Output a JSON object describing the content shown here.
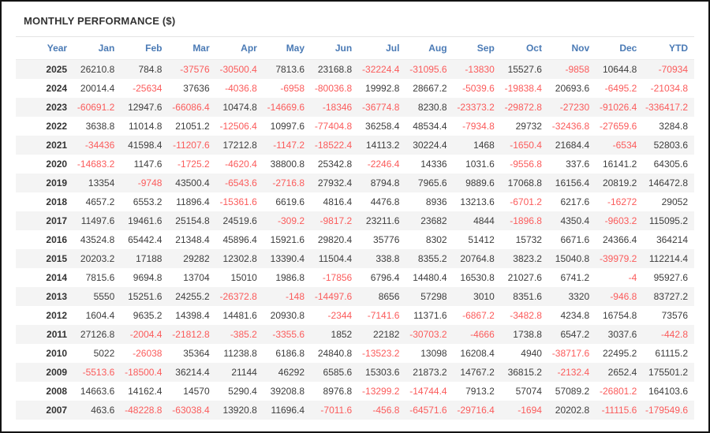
{
  "title": "MONTHLY PERFORMANCE ($)",
  "colors": {
    "header_text": "#4a7ab5",
    "negative_value": "#fb5b5b",
    "positive_value": "#3d3d3d",
    "alternate_row_bg": "#f4f4f4",
    "frame_border": "#141414"
  },
  "table": {
    "columns": [
      "Year",
      "Jan",
      "Feb",
      "Mar",
      "Apr",
      "May",
      "Jun",
      "Jul",
      "Aug",
      "Sep",
      "Oct",
      "Nov",
      "Dec",
      "YTD"
    ],
    "rows": [
      {
        "year": "2025",
        "values": [
          "26210.8",
          "784.8",
          "-37576",
          "-30500.4",
          "7813.6",
          "23168.8",
          "-32224.4",
          "-31095.6",
          "-13830",
          "15527.6",
          "-9858",
          "10644.8",
          "-70934"
        ]
      },
      {
        "year": "2024",
        "values": [
          "20014.4",
          "-25634",
          "37636",
          "-4036.8",
          "-6958",
          "-80036.8",
          "19992.8",
          "28667.2",
          "-5039.6",
          "-19838.4",
          "20693.6",
          "-6495.2",
          "-21034.8"
        ]
      },
      {
        "year": "2023",
        "values": [
          "-60691.2",
          "12947.6",
          "-66086.4",
          "10474.8",
          "-14669.6",
          "-18346",
          "-36774.8",
          "8230.8",
          "-23373.2",
          "-29872.8",
          "-27230",
          "-91026.4",
          "-336417.2"
        ]
      },
      {
        "year": "2022",
        "values": [
          "3638.8",
          "11014.8",
          "21051.2",
          "-12506.4",
          "10997.6",
          "-77404.8",
          "36258.4",
          "48534.4",
          "-7934.8",
          "29732",
          "-32436.8",
          "-27659.6",
          "3284.8"
        ]
      },
      {
        "year": "2021",
        "values": [
          "-34436",
          "41598.4",
          "-11207.6",
          "17212.8",
          "-1147.2",
          "-18522.4",
          "14113.2",
          "30224.4",
          "1468",
          "-1650.4",
          "21684.4",
          "-6534",
          "52803.6"
        ]
      },
      {
        "year": "2020",
        "values": [
          "-14683.2",
          "1147.6",
          "-1725.2",
          "-4620.4",
          "38800.8",
          "25342.8",
          "-2246.4",
          "14336",
          "1031.6",
          "-9556.8",
          "337.6",
          "16141.2",
          "64305.6"
        ]
      },
      {
        "year": "2019",
        "values": [
          "13354",
          "-9748",
          "43500.4",
          "-6543.6",
          "-2716.8",
          "27932.4",
          "8794.8",
          "7965.6",
          "9889.6",
          "17068.8",
          "16156.4",
          "20819.2",
          "146472.8"
        ]
      },
      {
        "year": "2018",
        "values": [
          "4657.2",
          "6553.2",
          "11896.4",
          "-15361.6",
          "6619.6",
          "4816.4",
          "4476.8",
          "8936",
          "13213.6",
          "-6701.2",
          "6217.6",
          "-16272",
          "29052"
        ]
      },
      {
        "year": "2017",
        "values": [
          "11497.6",
          "19461.6",
          "25154.8",
          "24519.6",
          "-309.2",
          "-9817.2",
          "23211.6",
          "23682",
          "4844",
          "-1896.8",
          "4350.4",
          "-9603.2",
          "115095.2"
        ]
      },
      {
        "year": "2016",
        "values": [
          "43524.8",
          "65442.4",
          "21348.4",
          "45896.4",
          "15921.6",
          "29820.4",
          "35776",
          "8302",
          "51412",
          "15732",
          "6671.6",
          "24366.4",
          "364214"
        ]
      },
      {
        "year": "2015",
        "values": [
          "20203.2",
          "17188",
          "29282",
          "12302.8",
          "13390.4",
          "11504.4",
          "338.8",
          "8355.2",
          "20764.8",
          "3823.2",
          "15040.8",
          "-39979.2",
          "112214.4"
        ]
      },
      {
        "year": "2014",
        "values": [
          "7815.6",
          "9694.8",
          "13704",
          "15010",
          "1986.8",
          "-17856",
          "6796.4",
          "14480.4",
          "16530.8",
          "21027.6",
          "6741.2",
          "-4",
          "95927.6"
        ]
      },
      {
        "year": "2013",
        "values": [
          "5550",
          "15251.6",
          "24255.2",
          "-26372.8",
          "-148",
          "-14497.6",
          "8656",
          "57298",
          "3010",
          "8351.6",
          "3320",
          "-946.8",
          "83727.2"
        ]
      },
      {
        "year": "2012",
        "values": [
          "1604.4",
          "9635.2",
          "14398.4",
          "14481.6",
          "20930.8",
          "-2344",
          "-7141.6",
          "11371.6",
          "-6867.2",
          "-3482.8",
          "4234.8",
          "16754.8",
          "73576"
        ]
      },
      {
        "year": "2011",
        "values": [
          "27126.8",
          "-2004.4",
          "-21812.8",
          "-385.2",
          "-3355.6",
          "1852",
          "22182",
          "-30703.2",
          "-4666",
          "1738.8",
          "6547.2",
          "3037.6",
          "-442.8"
        ]
      },
      {
        "year": "2010",
        "values": [
          "5022",
          "-26038",
          "35364",
          "11238.8",
          "6186.8",
          "24840.8",
          "-13523.2",
          "13098",
          "16208.4",
          "4940",
          "-38717.6",
          "22495.2",
          "61115.2"
        ]
      },
      {
        "year": "2009",
        "values": [
          "-5513.6",
          "-18500.4",
          "36214.4",
          "21144",
          "46292",
          "6585.6",
          "15303.6",
          "21873.2",
          "14767.2",
          "36815.2",
          "-2132.4",
          "2652.4",
          "175501.2"
        ]
      },
      {
        "year": "2008",
        "values": [
          "14663.6",
          "14162.4",
          "14570",
          "5290.4",
          "39208.8",
          "8976.8",
          "-13299.2",
          "-14744.4",
          "7913.2",
          "57074",
          "57089.2",
          "-26801.2",
          "164103.6"
        ]
      },
      {
        "year": "2007",
        "values": [
          "463.6",
          "-48228.8",
          "-63038.4",
          "13920.8",
          "11696.4",
          "-7011.6",
          "-456.8",
          "-64571.6",
          "-29716.4",
          "-1694",
          "20202.8",
          "-11115.6",
          "-179549.6"
        ]
      }
    ]
  }
}
